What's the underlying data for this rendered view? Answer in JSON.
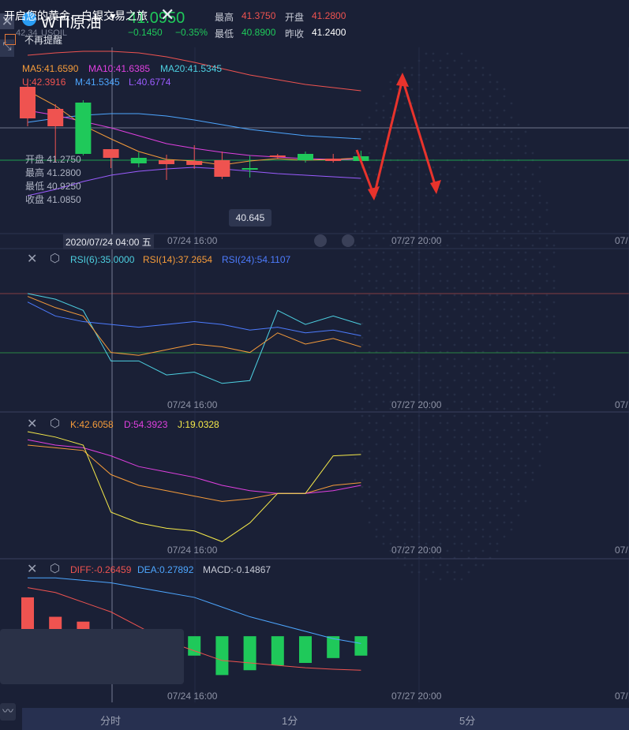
{
  "header": {
    "symbol": "WTI原油",
    "symbol_code": "USOIL",
    "sub_value": "42.34",
    "price": "41.0950",
    "change": "−0.1450",
    "change_pct": "−0.35%",
    "high_label": "最高",
    "high": "41.3750",
    "open_label": "开盘",
    "open": "41.2800",
    "low_label": "最低",
    "low": "40.8900",
    "prev_label": "昨收",
    "prev": "41.2400"
  },
  "main_indicators": {
    "ma5": "MA5:41.6590",
    "ma10": "MA10:41.6385",
    "ma20": "MA20:41.5345",
    "boll_u": "U:42.3916",
    "boll_m": "M:41.5345",
    "boll_l": "L:40.6774"
  },
  "hover_ohlc": {
    "open": "开盘 41.2750",
    "high": "最高 41.2800",
    "low": "最低 40.9250",
    "close": "收盘 41.0850"
  },
  "price_tag": "40.645",
  "crosshair_date": "2020/07/24 04:00 五",
  "time_ticks": [
    "07/24 16:00",
    "07/27 20:00",
    "07/"
  ],
  "rsi_panel": {
    "rsi6": "RSI(6):35.0000",
    "rsi14": "RSI(14):37.2654",
    "rsi24": "RSI(24):54.1107"
  },
  "kdj_panel": {
    "k": "K:42.6058",
    "d": "D:54.3923",
    "j": "J:19.0328"
  },
  "macd_panel": {
    "diff": "DIFF:-0.26459",
    "dea": "DEA:0.27892",
    "macd": "MACD:-0.14867"
  },
  "popup": {
    "title": "开启您的黄金、白银交易之旅",
    "checkbox_label": "不再提醒"
  },
  "tabs": [
    "分时",
    "1分",
    "5分"
  ],
  "colors": {
    "up": "#1fc95a",
    "down": "#ef5350",
    "bg": "#1a2036",
    "ma5": "#f59b3a",
    "ma10": "#e040e0",
    "ma20": "#4da6ff",
    "boll_l": "#9b5cff",
    "annotation": "#e8332c"
  },
  "chart_data": [
    {
      "type": "candlestick",
      "name": "main",
      "candles": [
        {
          "o": 41.8,
          "c": 41.4,
          "h": 41.9,
          "l": 41.3
        },
        {
          "o": 41.52,
          "c": 41.3,
          "h": 41.58,
          "l": 40.85
        },
        {
          "o": 40.95,
          "c": 41.6,
          "h": 41.63,
          "l": 40.93
        },
        {
          "o": 41.01,
          "c": 40.9,
          "h": 41.01,
          "l": 40.77
        },
        {
          "o": 40.83,
          "c": 40.9,
          "h": 40.97,
          "l": 40.78
        },
        {
          "o": 40.87,
          "c": 40.82,
          "h": 40.94,
          "l": 40.62
        },
        {
          "o": 40.86,
          "c": 40.81,
          "h": 41.06,
          "l": 40.76
        },
        {
          "o": 40.87,
          "c": 40.66,
          "h": 40.98,
          "l": 40.63
        },
        {
          "o": 40.77,
          "c": 40.77,
          "h": 40.93,
          "l": 40.65
        },
        {
          "o": 40.93,
          "c": 40.91,
          "h": 40.95,
          "l": 40.89
        },
        {
          "o": 40.87,
          "c": 40.95,
          "h": 40.98,
          "l": 40.84
        },
        {
          "o": 40.89,
          "c": 40.86,
          "h": 40.95,
          "l": 40.84
        },
        {
          "o": 40.86,
          "c": 40.92,
          "h": 40.99,
          "l": 40.85
        }
      ],
      "ma5": [
        41.75,
        41.56,
        41.31,
        41.14,
        40.98,
        40.88,
        40.86,
        40.81,
        40.86,
        40.89,
        40.87,
        40.88,
        40.9
      ],
      "ma10": [
        41.5,
        41.44,
        41.36,
        41.28,
        41.18,
        41.08,
        41.02,
        40.97,
        40.93,
        40.91,
        40.89,
        40.88,
        40.88
      ],
      "ma20": [
        41.35,
        41.4,
        41.44,
        41.46,
        41.46,
        41.43,
        41.38,
        41.32,
        41.26,
        41.22,
        41.18,
        41.16,
        41.14
      ],
      "boll_l": [
        40.42,
        40.5,
        40.6,
        40.68,
        40.73,
        40.76,
        40.78,
        40.76,
        40.73,
        40.7,
        40.68,
        40.66,
        40.64
      ],
      "ylim": [
        40.2,
        42.3
      ]
    },
    {
      "type": "line",
      "name": "rsi",
      "series": [
        {
          "name": "RSI(6)",
          "values": [
            66,
            64,
            60,
            42,
            42,
            37,
            38,
            34,
            35,
            60,
            55,
            58,
            55
          ]
        },
        {
          "name": "RSI(14)",
          "values": [
            65,
            61,
            58,
            45,
            44,
            46,
            48,
            47,
            45,
            52,
            48,
            50,
            47
          ]
        },
        {
          "name": "RSI(24)",
          "values": [
            63,
            58,
            56,
            55,
            54,
            55,
            56,
            55,
            53,
            54,
            52,
            53,
            51
          ]
        }
      ],
      "ylim": [
        30,
        75
      ]
    },
    {
      "type": "line",
      "name": "kdj",
      "series": [
        {
          "name": "K",
          "values": [
            80,
            78,
            76,
            58,
            50,
            46,
            42,
            38,
            40,
            44,
            44,
            50,
            52
          ]
        },
        {
          "name": "D",
          "values": [
            84,
            80,
            78,
            72,
            64,
            60,
            56,
            50,
            46,
            44,
            44,
            46,
            50
          ]
        },
        {
          "name": "J",
          "values": [
            90,
            86,
            80,
            30,
            22,
            18,
            16,
            8,
            22,
            44,
            44,
            72,
            73
          ]
        }
      ],
      "ylim": [
        0,
        100
      ]
    },
    {
      "type": "bar",
      "name": "macd",
      "values": [
        0.08,
        0.04,
        0.03,
        -0.005,
        -0.01,
        -0.01,
        -0.04,
        -0.08,
        -0.07,
        -0.06,
        -0.055,
        -0.045,
        -0.04
      ],
      "series": [
        {
          "name": "DIFF",
          "values": [
            0.1,
            0.09,
            0.07,
            0.05,
            0.02,
            -0.01,
            -0.03,
            -0.05,
            -0.055,
            -0.06,
            -0.065,
            -0.068,
            -0.07
          ]
        },
        {
          "name": "DEA",
          "values": [
            0.12,
            0.12,
            0.115,
            0.11,
            0.1,
            0.09,
            0.08,
            0.06,
            0.04,
            0.025,
            0.01,
            -0.005,
            -0.015
          ]
        }
      ],
      "ylim": [
        -0.12,
        0.14
      ]
    }
  ]
}
